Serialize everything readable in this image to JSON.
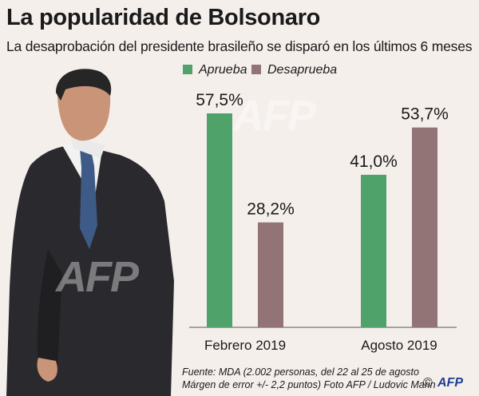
{
  "header": {
    "title": "La popularidad de Bolsonaro",
    "subtitle": "La desaprobación del presidente brasileño se disparó en los últimos 6 meses"
  },
  "legend": {
    "approve_label": "Aprueba",
    "disapprove_label": "Desaprueba"
  },
  "colors": {
    "approve": "#4fa36a",
    "disapprove": "#927476",
    "background": "#f5efec"
  },
  "chart_data": {
    "type": "bar",
    "categories": [
      "Febrero 2019",
      "Agosto 2019"
    ],
    "series": [
      {
        "name": "Aprueba",
        "values": [
          57.5,
          41.0
        ],
        "labels": [
          "57,5%",
          "41,0%"
        ]
      },
      {
        "name": "Desaprueba",
        "values": [
          28.2,
          53.7
        ],
        "labels": [
          "28,2%",
          "53,7%"
        ]
      }
    ],
    "title": "La popularidad de Bolsonaro",
    "subtitle": "La desaprobación del presidente brasileño se disparó en los últimos 6 meses",
    "legend_position": "top",
    "grid": false,
    "ylim": [
      0,
      60
    ]
  },
  "footer": {
    "source": "Fuente: MDA (2.002 personas, del 22 al 25 de agosto",
    "margin": "Márgen de error +/- 2,2 puntos) Foto AFP / Ludovic Marin",
    "copyright": "©",
    "logo": "AFP"
  },
  "watermark": "AFP"
}
